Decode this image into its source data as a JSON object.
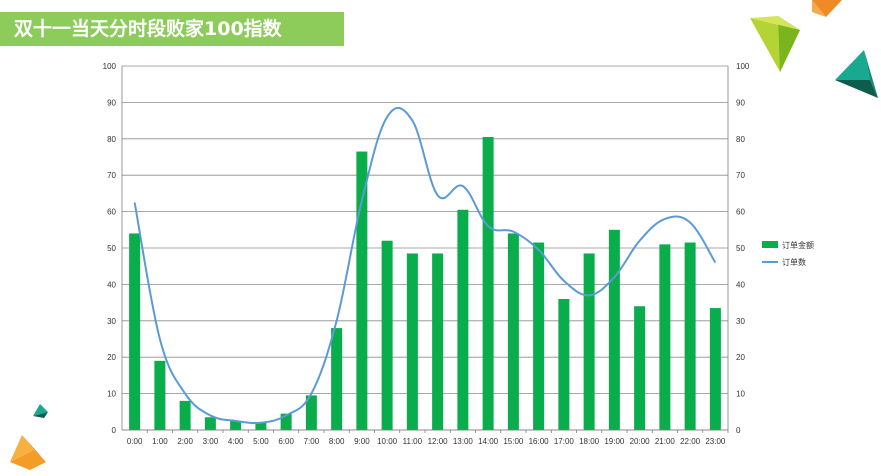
{
  "header": {
    "title": "双十一当天分时段败家100指数"
  },
  "colors": {
    "bar": "#0aad4b",
    "line": "#5b9bd5",
    "header_bg": "#8dcb5a",
    "grid": "#8c8c8c"
  },
  "chart_data": {
    "type": "bar",
    "title": "",
    "categories": [
      "0:00",
      "1:00",
      "2:00",
      "3:00",
      "4:00",
      "5:00",
      "6:00",
      "7:00",
      "8:00",
      "9:00",
      "10:00",
      "11:00",
      "12:00",
      "13:00",
      "14:00",
      "15:00",
      "16:00",
      "17:00",
      "18:00",
      "19:00",
      "20:00",
      "21:00",
      "22:00",
      "23:00"
    ],
    "series": [
      {
        "name": "订单金额",
        "type": "bar",
        "axis": "left",
        "values": [
          54,
          19,
          8,
          3.5,
          2.5,
          2,
          4.5,
          9.5,
          28,
          76.5,
          52,
          48.5,
          48.5,
          60.5,
          80.5,
          54,
          51.5,
          36,
          48.5,
          55,
          34,
          51,
          51.5,
          33.5
        ]
      },
      {
        "name": "订单数",
        "type": "line",
        "axis": "right",
        "values": [
          62.5,
          25,
          10,
          4,
          2.5,
          2,
          4,
          10,
          30,
          63,
          86,
          85,
          64.5,
          67,
          56,
          54.5,
          49.5,
          41,
          37,
          42,
          52,
          58,
          57,
          46
        ]
      }
    ],
    "yAxisLeft": {
      "min": 0,
      "max": 100,
      "ticks": [
        "0",
        "10",
        "20",
        "30",
        "40",
        "50",
        "60",
        "70",
        "80",
        "90",
        "100"
      ]
    },
    "yAxisRight": {
      "min": 0,
      "max": 100,
      "ticks": [
        "0",
        "10",
        "20",
        "30",
        "40",
        "50",
        "60",
        "70",
        "80",
        "90",
        "100"
      ]
    },
    "grid": true,
    "legend": "right"
  }
}
